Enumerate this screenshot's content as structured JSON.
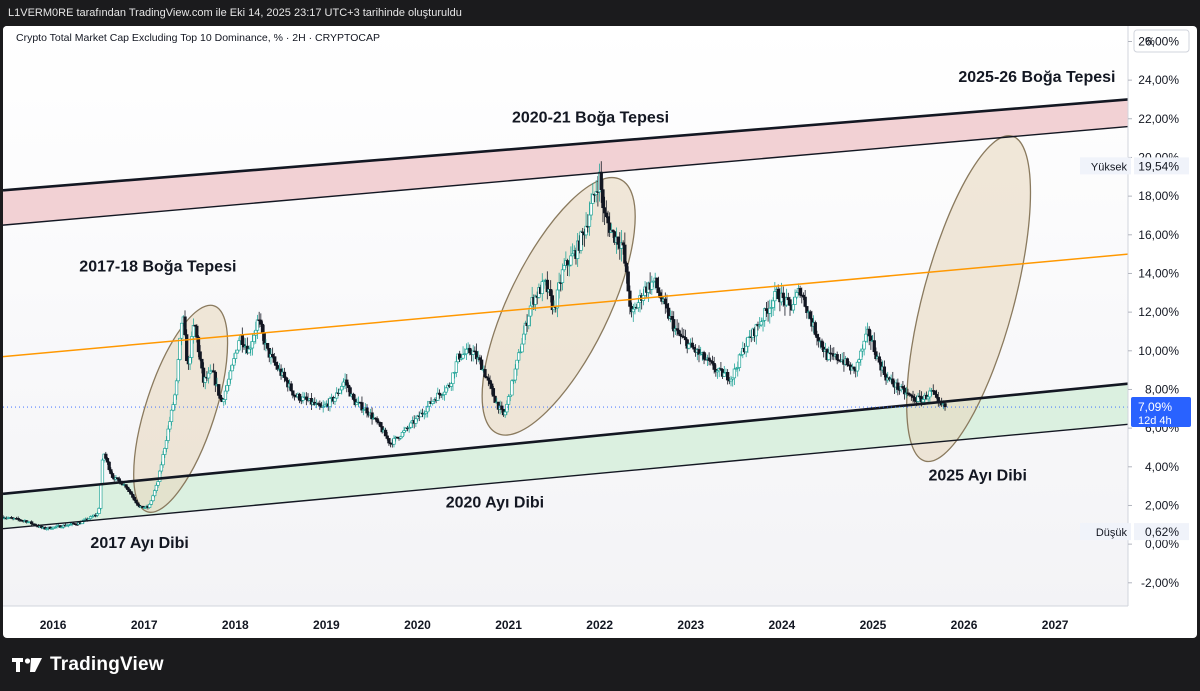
{
  "header": {
    "attribution": "L1VERM0RE tarafından TradingView.com ile Eki 14, 2025 23:17 UTC+3 tarihinde oluşturuldu"
  },
  "symbol": {
    "title": "Crypto Total Market Cap Excluding Top 10 Dominance, % · 2H · CRYPTOCAP"
  },
  "footer": {
    "logo_text": "TradingView"
  },
  "chart_data": {
    "type": "candlestick",
    "title": "Crypto Total Market Cap Excluding Top 10 Dominance, % · 2H · CRYPTOCAP",
    "unit_label": "%",
    "x_range": [
      2015.45,
      2027.8
    ],
    "ylim": [
      -3.2,
      26.8
    ],
    "y_ticks": [
      "26,00%",
      "24,00%",
      "22,00%",
      "20,00%",
      "18,00%",
      "16,00%",
      "14,00%",
      "12,00%",
      "10,00%",
      "8,00%",
      "6,00%",
      "4,00%",
      "2,00%",
      "0,00%",
      "-2,00%"
    ],
    "y_tick_values": [
      26,
      24,
      22,
      20,
      18,
      16,
      14,
      12,
      10,
      8,
      6,
      4,
      2,
      0,
      -2
    ],
    "x_ticks": [
      "2016",
      "2017",
      "2018",
      "2019",
      "2020",
      "2021",
      "2022",
      "2023",
      "2024",
      "2025",
      "2026",
      "2027"
    ],
    "x_tick_values": [
      2016,
      2017,
      2018,
      2019,
      2020,
      2021,
      2022,
      2023,
      2024,
      2025,
      2026,
      2027
    ],
    "price_path": [
      [
        2015.45,
        1.4
      ],
      [
        2015.7,
        1.2
      ],
      [
        2015.9,
        0.8
      ],
      [
        2016.05,
        0.9
      ],
      [
        2016.3,
        1.1
      ],
      [
        2016.5,
        1.6
      ],
      [
        2016.55,
        4.8
      ],
      [
        2016.65,
        3.5
      ],
      [
        2016.8,
        3.0
      ],
      [
        2016.95,
        1.9
      ],
      [
        2017.05,
        1.9
      ],
      [
        2017.15,
        3.2
      ],
      [
        2017.25,
        5.6
      ],
      [
        2017.35,
        8.0
      ],
      [
        2017.42,
        12.0
      ],
      [
        2017.48,
        9.0
      ],
      [
        2017.55,
        11.5
      ],
      [
        2017.65,
        8.4
      ],
      [
        2017.75,
        8.9
      ],
      [
        2017.85,
        7.3
      ],
      [
        2017.95,
        8.8
      ],
      [
        2018.05,
        10.8
      ],
      [
        2018.15,
        10.0
      ],
      [
        2018.25,
        11.6
      ],
      [
        2018.35,
        10.0
      ],
      [
        2018.45,
        9.2
      ],
      [
        2018.55,
        8.5
      ],
      [
        2018.65,
        7.7
      ],
      [
        2018.8,
        7.4
      ],
      [
        2018.95,
        7.0
      ],
      [
        2019.1,
        7.6
      ],
      [
        2019.2,
        8.5
      ],
      [
        2019.3,
        7.4
      ],
      [
        2019.45,
        6.9
      ],
      [
        2019.6,
        6.0
      ],
      [
        2019.7,
        5.2
      ],
      [
        2019.85,
        5.8
      ],
      [
        2020.0,
        6.5
      ],
      [
        2020.2,
        7.6
      ],
      [
        2020.35,
        8.2
      ],
      [
        2020.45,
        9.7
      ],
      [
        2020.6,
        10.0
      ],
      [
        2020.7,
        9.3
      ],
      [
        2020.85,
        7.5
      ],
      [
        2020.95,
        6.6
      ],
      [
        2021.05,
        8.5
      ],
      [
        2021.15,
        10.5
      ],
      [
        2021.25,
        12.5
      ],
      [
        2021.4,
        13.5
      ],
      [
        2021.5,
        12.1
      ],
      [
        2021.6,
        14.2
      ],
      [
        2021.75,
        15.2
      ],
      [
        2021.85,
        16.5
      ],
      [
        2022.0,
        19.0
      ],
      [
        2022.05,
        17.0
      ],
      [
        2022.15,
        16.0
      ],
      [
        2022.25,
        15.5
      ],
      [
        2022.35,
        11.8
      ],
      [
        2022.5,
        13.2
      ],
      [
        2022.6,
        13.6
      ],
      [
        2022.7,
        12.4
      ],
      [
        2022.85,
        10.9
      ],
      [
        2023.0,
        10.2
      ],
      [
        2023.15,
        9.6
      ],
      [
        2023.3,
        8.9
      ],
      [
        2023.45,
        8.6
      ],
      [
        2023.6,
        10.3
      ],
      [
        2023.75,
        11.4
      ],
      [
        2023.95,
        13.0
      ],
      [
        2024.1,
        12.2
      ],
      [
        2024.2,
        13.2
      ],
      [
        2024.35,
        11.2
      ],
      [
        2024.5,
        9.7
      ],
      [
        2024.65,
        9.6
      ],
      [
        2024.8,
        8.9
      ],
      [
        2024.95,
        11.0
      ],
      [
        2025.05,
        9.6
      ],
      [
        2025.15,
        8.6
      ],
      [
        2025.3,
        8.0
      ],
      [
        2025.45,
        7.5
      ],
      [
        2025.55,
        7.5
      ],
      [
        2025.65,
        7.9
      ],
      [
        2025.72,
        7.2
      ],
      [
        2025.8,
        7.09
      ]
    ],
    "channel_upper": {
      "top": [
        [
          2015.45,
          18.3
        ],
        [
          2027.8,
          23.0
        ]
      ],
      "bottom": [
        [
          2015.45,
          16.5
        ],
        [
          2027.8,
          21.6
        ]
      ]
    },
    "channel_middle": {
      "line": [
        [
          2015.45,
          9.7
        ],
        [
          2027.8,
          15.0
        ]
      ]
    },
    "channel_lower": {
      "top": [
        [
          2015.45,
          2.6
        ],
        [
          2027.8,
          8.3
        ]
      ],
      "bottom": [
        [
          2015.45,
          0.8
        ],
        [
          2027.8,
          6.2
        ]
      ]
    },
    "ellipses": [
      {
        "x": 2017.4,
        "y": 7.0,
        "rx": 0.38,
        "ry": 5.6,
        "rot": 18
      },
      {
        "x": 2021.55,
        "y": 12.3,
        "rx": 0.55,
        "ry": 7.3,
        "rot": 26
      },
      {
        "x": 2026.05,
        "y": 12.7,
        "rx": 0.5,
        "ry": 8.7,
        "rot": 15
      }
    ],
    "annotations": [
      {
        "text": "2017-18 Boğa Tepesi",
        "x": 2017.15,
        "y": 14.1
      },
      {
        "text": "2020-21 Boğa Tepesi",
        "x": 2021.9,
        "y": 21.8
      },
      {
        "text": "2025-26 Boğa Tepesi",
        "x": 2026.8,
        "y": 23.9
      },
      {
        "text": "2017 Ayı Dibi",
        "x": 2016.95,
        "y": -0.2
      },
      {
        "text": "2020 Ayı Dibi",
        "x": 2020.85,
        "y": 1.9
      },
      {
        "text": "2025 Ayı Dibi",
        "x": 2026.15,
        "y": 3.3
      }
    ],
    "markers": {
      "high_label": "Yüksek",
      "high_value": "19,54%",
      "high": 19.54,
      "low_label": "Düşük",
      "low_value": "0,62%",
      "low": 0.62,
      "last_value": "7,09%",
      "last": 7.09,
      "countdown": "12d 4h"
    },
    "colors": {
      "up": "#26a69a",
      "down": "#131722",
      "upper_band": "#f0c9cd",
      "lower_band": "#d6eedc",
      "middle_line": "#ff9800",
      "ellipse_fill": "#e8d9bf",
      "last_price": "#2962ff"
    }
  }
}
